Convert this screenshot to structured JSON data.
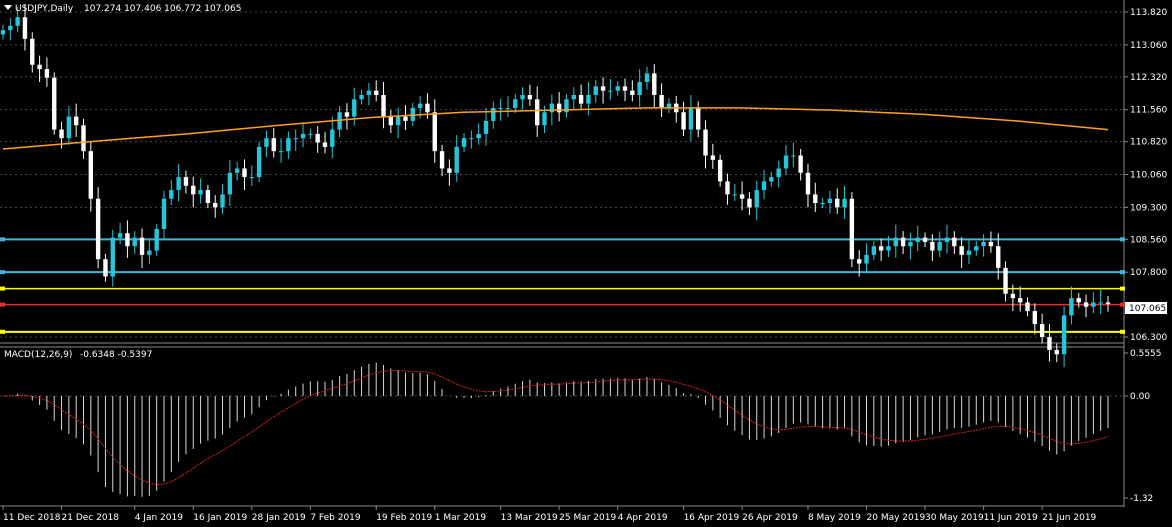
{
  "chart_title": "USDJPY,Daily",
  "ohlc_header": "107.274 107.406 106.772 107.065",
  "current_price_label": "107.065",
  "colors": {
    "background": "#000000",
    "bull": "#26c6da",
    "bear": "#ffffff",
    "ma": "#ff9f1c",
    "cyan_line": "#3fb8d6",
    "yellow_line": "#ffff00",
    "red_line": "#e03030",
    "signal": "#d92020",
    "grid": "#4a4a4a"
  },
  "chart_data": [
    {
      "type": "candlestick",
      "title": "USDJPY,Daily",
      "ylim": [
        106.0,
        114.0
      ],
      "y_ticks": [
        "113.820",
        "113.060",
        "112.320",
        "111.560",
        "110.820",
        "110.060",
        "109.300",
        "108.560",
        "107.800",
        "106.300"
      ],
      "y_tick_values": [
        113.82,
        113.06,
        112.32,
        111.56,
        110.82,
        110.06,
        109.3,
        108.56,
        107.8,
        106.3
      ],
      "x_labels": [
        "11 Dec 2018",
        "21 Dec 2018",
        "4 Jan 2019",
        "16 Jan 2019",
        "28 Jan 2019",
        "7 Feb 2019",
        "19 Feb 2019",
        "1 Mar 2019",
        "13 Mar 2019",
        "25 Mar 2019",
        "4 Apr 2019",
        "16 Apr 2019",
        "26 Apr 2019",
        "8 May 2019",
        "20 May 2019",
        "30 May 2019",
        "11 Jun 2019",
        "21 Jun 2019"
      ],
      "x_label_index": [
        0,
        8,
        18,
        26,
        34,
        42,
        51,
        59,
        68,
        76,
        84,
        93,
        101,
        110,
        118,
        126,
        134,
        142
      ],
      "close": [
        113.4,
        113.5,
        113.7,
        113.2,
        112.6,
        112.5,
        112.3,
        111.1,
        110.9,
        111.4,
        111.2,
        110.6,
        109.5,
        108.1,
        107.7,
        108.6,
        108.7,
        108.4,
        108.6,
        108.2,
        108.3,
        108.8,
        109.5,
        109.7,
        110.0,
        109.8,
        109.6,
        109.7,
        109.4,
        109.3,
        109.6,
        110.1,
        110.2,
        110.0,
        110.0,
        110.7,
        110.9,
        110.6,
        110.6,
        110.9,
        110.9,
        111.0,
        111.0,
        110.8,
        110.7,
        111.1,
        111.5,
        111.4,
        111.8,
        111.9,
        112.0,
        111.9,
        111.4,
        111.2,
        111.4,
        111.3,
        111.6,
        111.7,
        111.5,
        110.6,
        110.2,
        110.1,
        110.7,
        110.9,
        110.9,
        111.0,
        111.3,
        111.6,
        111.6,
        111.6,
        111.8,
        111.9,
        111.8,
        111.2,
        111.5,
        111.7,
        111.5,
        111.8,
        111.9,
        111.7,
        111.9,
        112.1,
        112.0,
        112.0,
        112.1,
        112.0,
        111.9,
        112.2,
        112.4,
        111.9,
        111.6,
        111.7,
        111.5,
        111.1,
        111.6,
        111.1,
        110.5,
        110.4,
        109.9,
        109.6,
        109.6,
        109.5,
        109.3,
        109.7,
        109.9,
        110.0,
        110.2,
        110.5,
        110.5,
        110.1,
        109.6,
        109.4,
        109.4,
        109.5,
        109.3,
        109.5,
        108.1,
        108.0,
        108.2,
        108.4,
        108.3,
        108.4,
        108.6,
        108.4,
        108.5,
        108.6,
        108.5,
        108.3,
        108.5,
        108.6,
        108.4,
        108.2,
        108.3,
        108.4,
        108.5,
        108.4,
        107.9,
        107.3,
        107.2,
        107.1,
        106.9,
        106.6,
        106.3,
        106.0,
        105.9,
        106.8,
        107.2,
        107.1,
        107.0,
        107.1,
        107.1,
        107.065
      ],
      "ma_period": 200,
      "ma_values": [
        110.65,
        110.83,
        111.0,
        111.2,
        111.38,
        111.5,
        111.55,
        111.6,
        111.6,
        111.55,
        111.45,
        111.3,
        111.1
      ]
    },
    {
      "type": "macd",
      "title": "MACD(12,26,9)",
      "values_text": "-0.6348 -0.5397",
      "ylim": [
        -1.32,
        0.5555
      ],
      "y_ticks": [
        "0.5555",
        "0.00",
        "-1.32"
      ],
      "y_tick_values": [
        0.5555,
        0.0,
        -1.32
      ]
    }
  ]
}
